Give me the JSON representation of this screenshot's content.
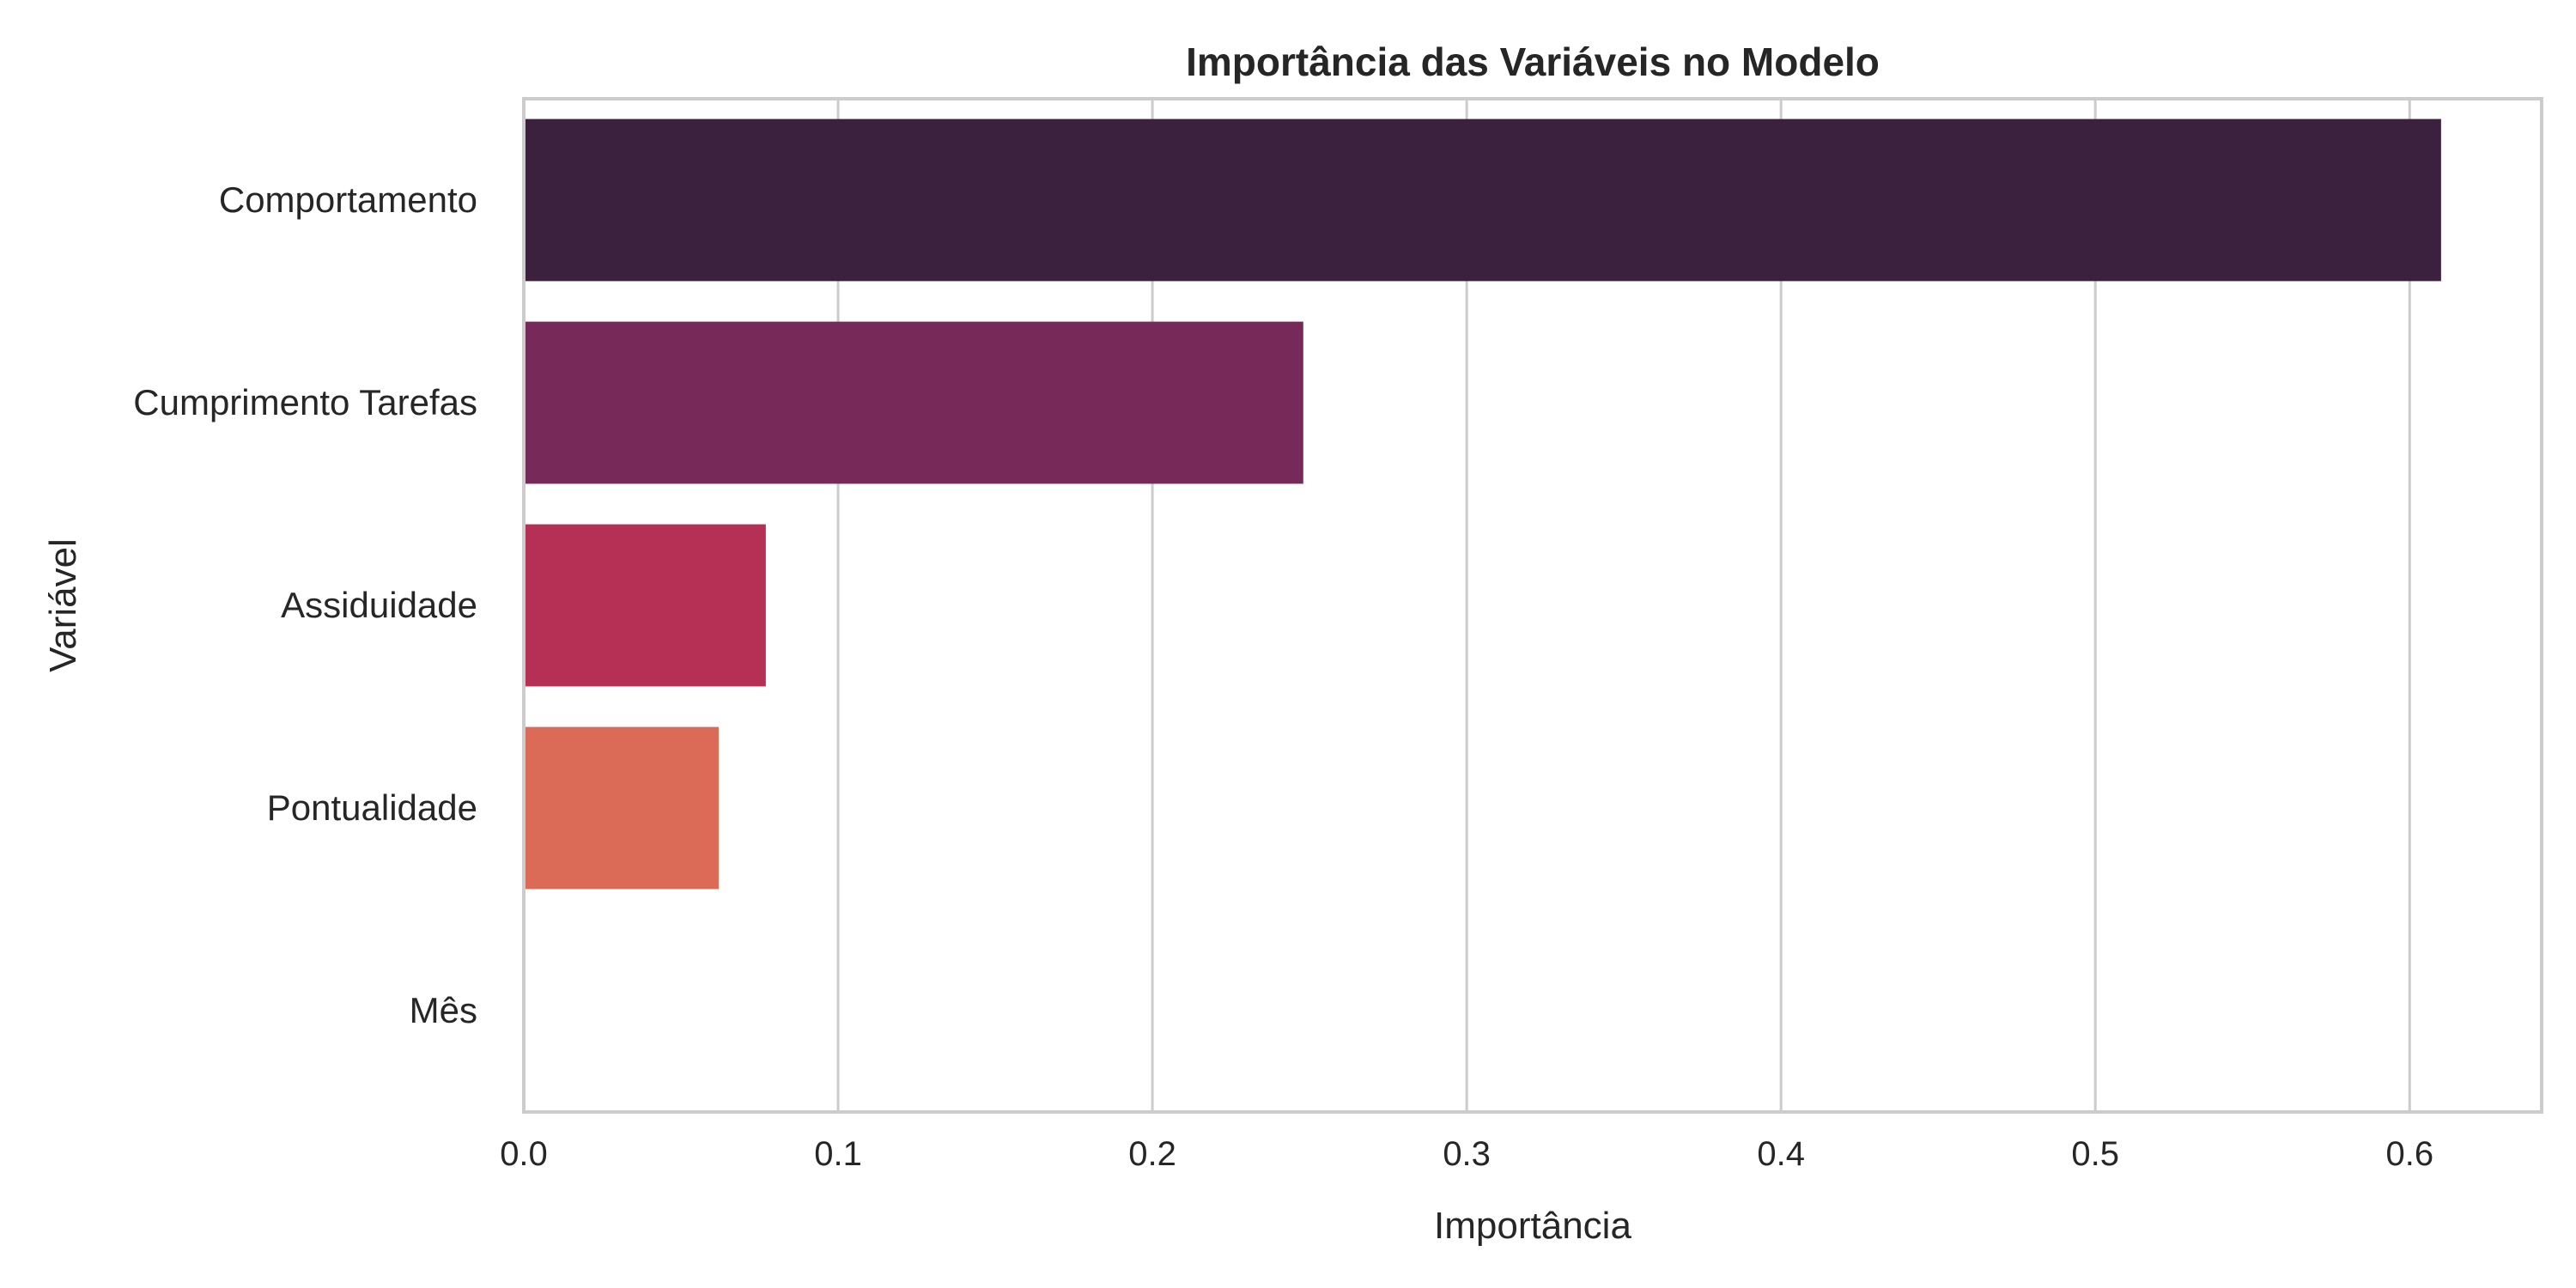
{
  "chart_data": {
    "type": "bar",
    "orientation": "horizontal",
    "title": "Importância das Variáveis no Modelo",
    "xlabel": "Importância",
    "ylabel": "Variável",
    "categories": [
      "Comportamento",
      "Cumprimento Tarefas",
      "Assiduidade",
      "Pontualidade",
      "Mês"
    ],
    "values": [
      0.61,
      0.248,
      0.077,
      0.062,
      0.0
    ],
    "colors": [
      "#3c213e",
      "#772a59",
      "#b62f55",
      "#db6b57",
      "#f3b08f"
    ],
    "xlim": [
      0.0,
      0.642
    ],
    "xticks": [
      0.0,
      0.1,
      0.2,
      0.3,
      0.4,
      0.5,
      0.6
    ],
    "xtick_labels": [
      "0.0",
      "0.1",
      "0.2",
      "0.3",
      "0.4",
      "0.5",
      "0.6"
    ],
    "grid": "vertical",
    "legend": "none"
  }
}
